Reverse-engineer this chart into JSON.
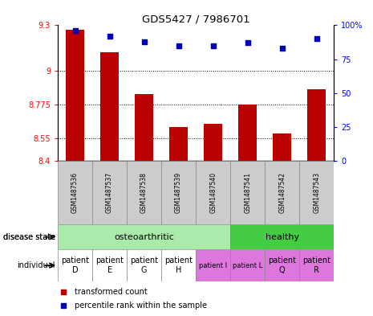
{
  "title": "GDS5427 / 7986701",
  "samples": [
    "GSM1487536",
    "GSM1487537",
    "GSM1487538",
    "GSM1487539",
    "GSM1487540",
    "GSM1487541",
    "GSM1487542",
    "GSM1487543"
  ],
  "bar_values": [
    9.27,
    9.12,
    8.845,
    8.625,
    8.645,
    8.775,
    8.585,
    8.875
  ],
  "dot_values": [
    96,
    92,
    88,
    85,
    85,
    87,
    83,
    90
  ],
  "ymin": 8.4,
  "ymax": 9.3,
  "yticks": [
    8.4,
    8.55,
    8.775,
    9.0,
    9.3
  ],
  "ytick_labels": [
    "8.4",
    "8.55",
    "8.775",
    "9",
    "9.3"
  ],
  "y2min": 0,
  "y2max": 100,
  "y2ticks": [
    0,
    25,
    50,
    75,
    100
  ],
  "y2tick_labels": [
    "0",
    "25",
    "50",
    "75",
    "100%"
  ],
  "bar_color": "#bb0000",
  "dot_color": "#0000bb",
  "osteo_color": "#aaeaaa",
  "healthy_color": "#44cc44",
  "white_color": "#ffffff",
  "pink_color": "#dd77dd",
  "gray_color": "#cccccc",
  "individual_labels": [
    "patient\nD",
    "patient\nE",
    "patient\nG",
    "patient\nH",
    "patient I",
    "patient L",
    "patient\nQ",
    "patient\nR"
  ],
  "individual_colors": [
    "#ffffff",
    "#ffffff",
    "#ffffff",
    "#ffffff",
    "#dd77dd",
    "#dd77dd",
    "#dd77dd",
    "#dd77dd"
  ],
  "individual_fontsizes": [
    7,
    7,
    7,
    7,
    6,
    6,
    7,
    7
  ],
  "osteo_samples": 5,
  "healthy_samples": 3
}
